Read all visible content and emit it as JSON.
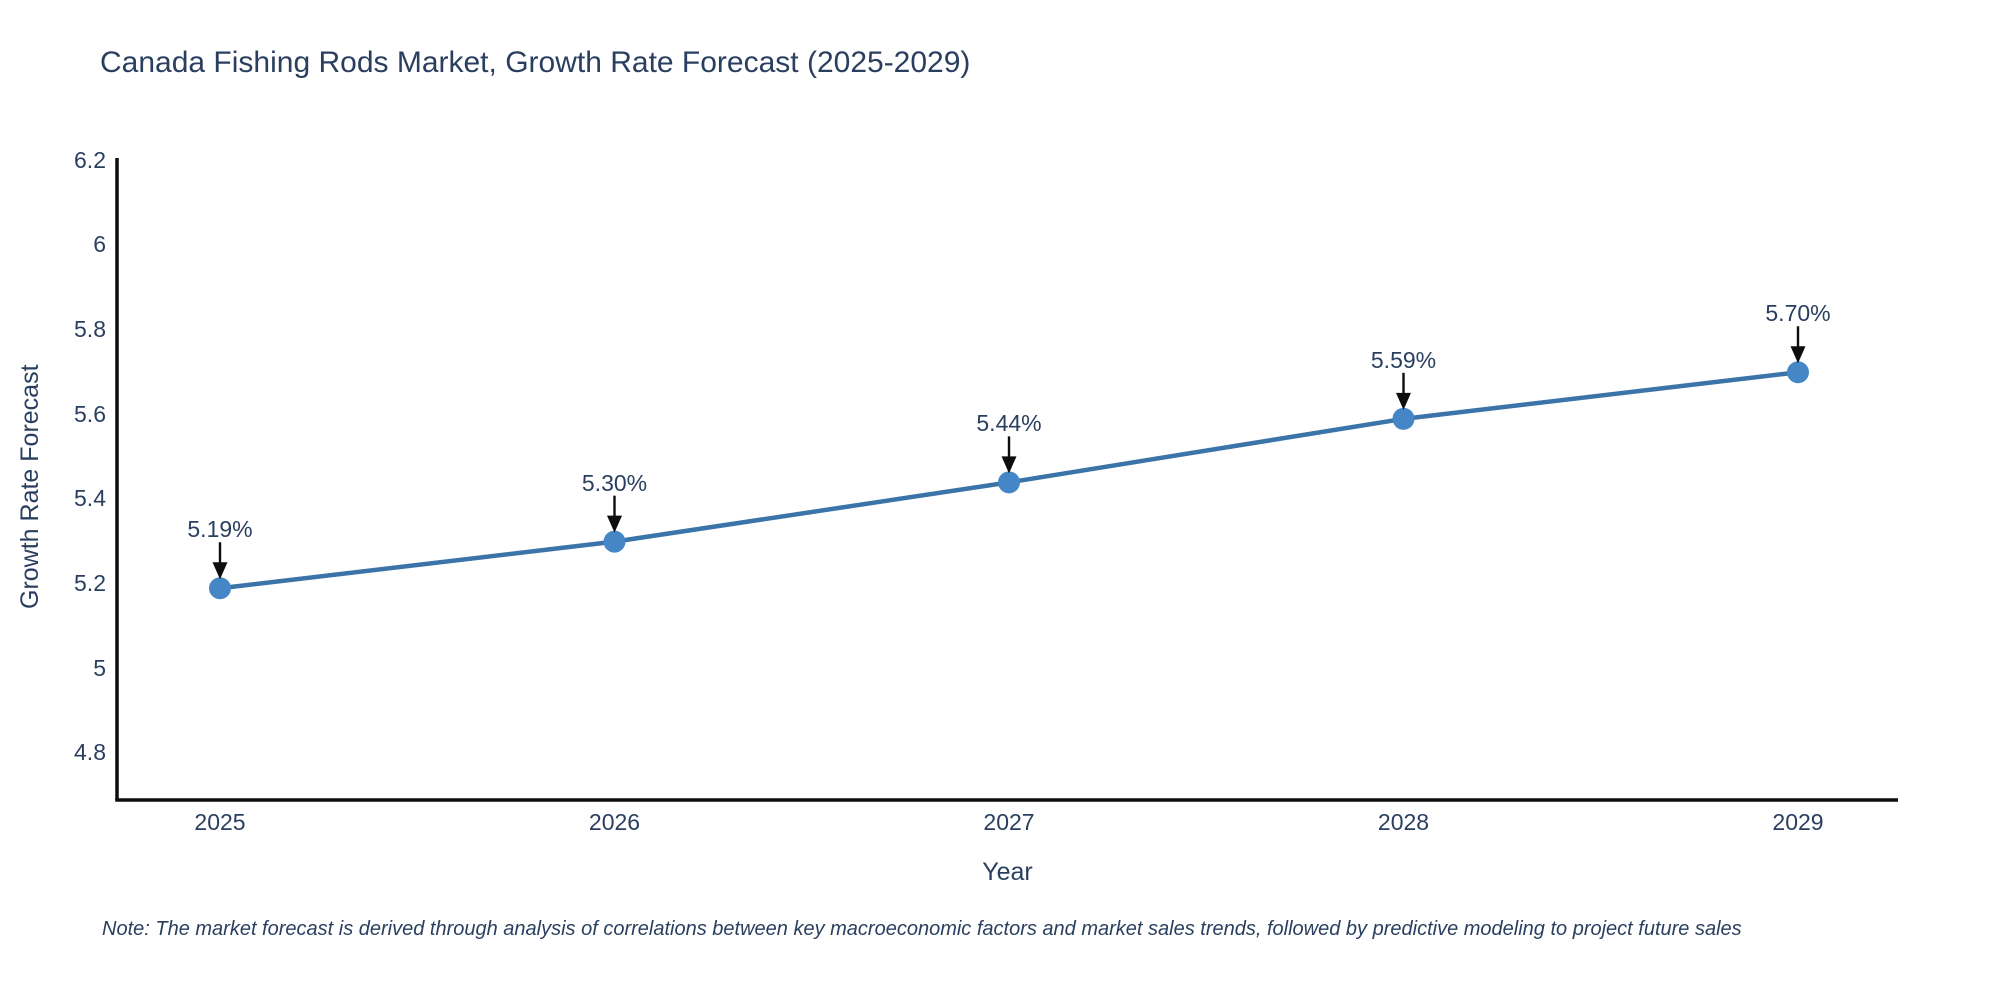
{
  "title": "Canada Fishing Rods Market, Growth Rate Forecast (2025-2029)",
  "note": "Note: The market forecast is derived through analysis of correlations between key macroeconomic factors and market sales trends, followed by predictive modeling to project future sales",
  "chart_data": {
    "type": "line",
    "title": "Canada Fishing Rods Market, Growth Rate Forecast (2025-2029)",
    "xlabel": "Year",
    "ylabel": "Growth Rate Forecast",
    "x": [
      2025,
      2026,
      2027,
      2028,
      2029
    ],
    "x_tick_labels": [
      "2025",
      "2026",
      "2027",
      "2028",
      "2029"
    ],
    "values": [
      5.19,
      5.3,
      5.44,
      5.59,
      5.7
    ],
    "point_labels": [
      "5.19%",
      "5.30%",
      "5.44%",
      "5.59%",
      "5.70%"
    ],
    "y_tick_values": [
      6.2,
      6.0,
      5.8,
      5.6,
      5.4,
      5.2,
      5.0,
      4.8
    ],
    "y_tick_labels": [
      "6.2",
      "6",
      "5.8",
      "5.6",
      "5.4",
      "5.2",
      "5",
      "4.8"
    ],
    "ylim": [
      4.69,
      6.2
    ],
    "grid": false,
    "legend_position": "none",
    "annotations_have_arrows": true,
    "colors": {
      "line": "#3a74a8",
      "marker": "#4587c6",
      "axis": "#0d0d0d",
      "text": "#2a3f5f",
      "arrow": "#0d0d0d",
      "background": "#ffffff"
    }
  }
}
